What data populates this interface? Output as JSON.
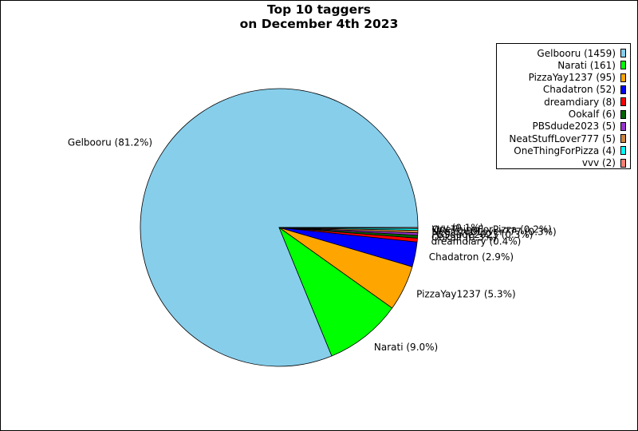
{
  "chart_data": {
    "type": "pie",
    "title": [
      "Top 10 taggers",
      "on December 4th 2023"
    ],
    "legend_position": "top-right",
    "slices": [
      {
        "name": "Gelbooru",
        "value": 1459,
        "percent_label": "Gelbooru (81.2%)",
        "legend_label": "Gelbooru (1459)",
        "color": "#87CEEB"
      },
      {
        "name": "Narati",
        "value": 161,
        "percent_label": "Narati (9.0%)",
        "legend_label": "Narati (161)",
        "color": "#00FF00"
      },
      {
        "name": "PizzaYay1237",
        "value": 95,
        "percent_label": "PizzaYay1237 (5.3%)",
        "legend_label": "PizzaYay1237 (95)",
        "color": "#FFA500"
      },
      {
        "name": "Chadatron",
        "value": 52,
        "percent_label": "Chadatron (2.9%)",
        "legend_label": "Chadatron (52)",
        "color": "#0000FF"
      },
      {
        "name": "dreamdiary",
        "value": 8,
        "percent_label": "dreamdiary (0.4%)",
        "legend_label": "dreamdiary (8)",
        "color": "#FF0000"
      },
      {
        "name": "Ookalf",
        "value": 6,
        "percent_label": "Ookalf (0.3%)",
        "legend_label": "Ookalf (6)",
        "color": "#006400"
      },
      {
        "name": "PBSdude2023",
        "value": 5,
        "percent_label": "PBSdude2023 (0.3%)",
        "legend_label": "PBSdude2023 (5)",
        "color": "#9932CC"
      },
      {
        "name": "NeatStuffLover777",
        "value": 5,
        "percent_label": "NeatStuffLover777 (0.3%)",
        "legend_label": "NeatStuffLover777 (5)",
        "color": "#CD853F"
      },
      {
        "name": "OneThingForPizza",
        "value": 4,
        "percent_label": "OneThingForPizza (0.2%)",
        "legend_label": "OneThingForPizza (4)",
        "color": "#00FFFF"
      },
      {
        "name": "vvv",
        "value": 2,
        "percent_label": "vvv (0.1%)",
        "legend_label": "vvv (2)",
        "color": "#FA8072"
      }
    ]
  }
}
